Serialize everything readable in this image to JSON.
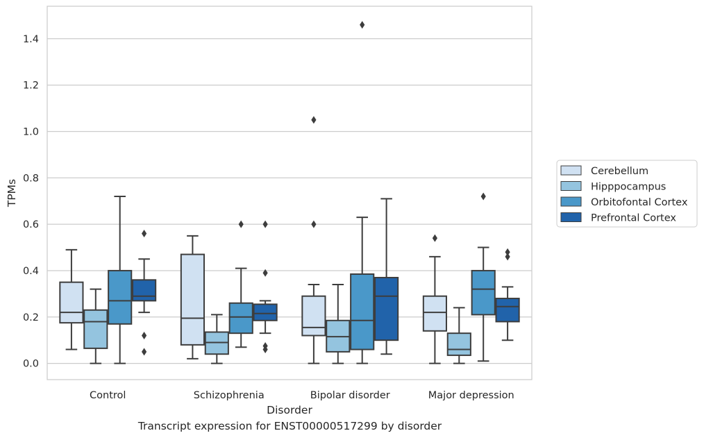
{
  "caption": "Transcript expression for ENST00000517299 by disorder",
  "chart_data": {
    "type": "box",
    "xlabel": "Disorder",
    "ylabel": "TPMs",
    "ylim": [
      -0.07,
      1.54
    ],
    "yticks": [
      "0.0",
      "0.2",
      "0.4",
      "0.6",
      "0.8",
      "1.0",
      "1.2",
      "1.4"
    ],
    "grid": "horizontal",
    "legend_position": "right",
    "categories": [
      "Control",
      "Schizophrenia",
      "Bipolar disorder",
      "Major depression"
    ],
    "series": [
      {
        "name": "Cerebellum",
        "color": "#d0e1f2",
        "boxes": [
          {
            "whisker_low": 0.06,
            "q1": 0.175,
            "median": 0.22,
            "q3": 0.35,
            "whisker_high": 0.49,
            "outliers": []
          },
          {
            "whisker_low": 0.02,
            "q1": 0.08,
            "median": 0.195,
            "q3": 0.47,
            "whisker_high": 0.55,
            "outliers": []
          },
          {
            "whisker_low": 0.0,
            "q1": 0.12,
            "median": 0.155,
            "q3": 0.29,
            "whisker_high": 0.34,
            "outliers": [
              0.6,
              1.05
            ]
          },
          {
            "whisker_low": 0.0,
            "q1": 0.14,
            "median": 0.22,
            "q3": 0.29,
            "whisker_high": 0.46,
            "outliers": [
              0.54
            ]
          }
        ]
      },
      {
        "name": "Hipppocampus",
        "color": "#94c4df",
        "boxes": [
          {
            "whisker_low": 0.0,
            "q1": 0.065,
            "median": 0.18,
            "q3": 0.23,
            "whisker_high": 0.32,
            "outliers": []
          },
          {
            "whisker_low": 0.0,
            "q1": 0.04,
            "median": 0.09,
            "q3": 0.135,
            "whisker_high": 0.21,
            "outliers": []
          },
          {
            "whisker_low": 0.0,
            "q1": 0.05,
            "median": 0.115,
            "q3": 0.185,
            "whisker_high": 0.34,
            "outliers": []
          },
          {
            "whisker_low": 0.0,
            "q1": 0.035,
            "median": 0.06,
            "q3": 0.13,
            "whisker_high": 0.24,
            "outliers": []
          }
        ]
      },
      {
        "name": "Orbitofontal Cortex",
        "color": "#4a98c9",
        "boxes": [
          {
            "whisker_low": 0.0,
            "q1": 0.17,
            "median": 0.27,
            "q3": 0.4,
            "whisker_high": 0.72,
            "outliers": []
          },
          {
            "whisker_low": 0.07,
            "q1": 0.13,
            "median": 0.2,
            "q3": 0.26,
            "whisker_high": 0.41,
            "outliers": [
              0.6
            ]
          },
          {
            "whisker_low": 0.0,
            "q1": 0.06,
            "median": 0.185,
            "q3": 0.385,
            "whisker_high": 0.63,
            "outliers": [
              1.46
            ]
          },
          {
            "whisker_low": 0.01,
            "q1": 0.21,
            "median": 0.32,
            "q3": 0.4,
            "whisker_high": 0.5,
            "outliers": [
              0.72
            ]
          }
        ]
      },
      {
        "name": "Prefrontal Cortex",
        "color": "#2163aa",
        "boxes": [
          {
            "whisker_low": 0.22,
            "q1": 0.27,
            "median": 0.29,
            "q3": 0.36,
            "whisker_high": 0.45,
            "outliers": [
              0.56,
              0.12,
              0.05
            ]
          },
          {
            "whisker_low": 0.13,
            "q1": 0.185,
            "median": 0.215,
            "q3": 0.255,
            "whisker_high": 0.27,
            "outliers": [
              0.6,
              0.39,
              0.075,
              0.06
            ]
          },
          {
            "whisker_low": 0.04,
            "q1": 0.1,
            "median": 0.29,
            "q3": 0.37,
            "whisker_high": 0.71,
            "outliers": []
          },
          {
            "whisker_low": 0.1,
            "q1": 0.18,
            "median": 0.245,
            "q3": 0.28,
            "whisker_high": 0.33,
            "outliers": [
              0.48,
              0.46
            ]
          }
        ]
      }
    ]
  }
}
